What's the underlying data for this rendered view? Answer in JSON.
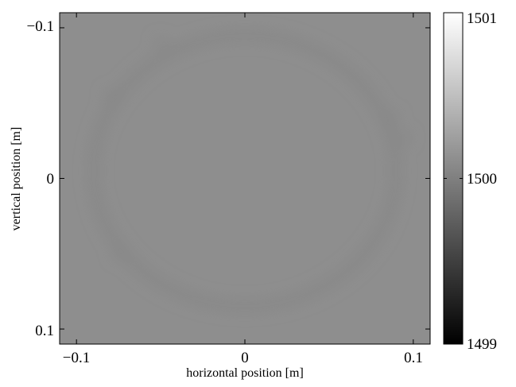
{
  "chart_data": {
    "type": "heatmap",
    "title": "",
    "xlabel": "horizontal position [m]",
    "ylabel": "vertical position [m]",
    "xlim": [
      -0.11,
      0.11
    ],
    "ylim": [
      -0.11,
      0.11
    ],
    "y_direction": "reversed (negative at top)",
    "xticks": [
      {
        "value": -0.1,
        "label": "−0.1"
      },
      {
        "value": 0,
        "label": "0"
      },
      {
        "value": 0.1,
        "label": "0.1"
      }
    ],
    "yticks": [
      {
        "value": -0.1,
        "label": "−0.1"
      },
      {
        "value": 0,
        "label": "0"
      },
      {
        "value": 0.1,
        "label": "0.1"
      }
    ],
    "grid": false,
    "colormap": "gray",
    "colorbar": {
      "range": [
        1499,
        1501
      ],
      "ticks": [
        {
          "value": 1499,
          "label": "1499"
        },
        {
          "value": 1500,
          "label": "1500"
        },
        {
          "value": 1501,
          "label": "1501"
        }
      ]
    },
    "field": {
      "background_value": 1500.0,
      "ring": {
        "center_x": 0.0,
        "center_y": -0.005,
        "radius": 0.09,
        "value": 1499.85
      },
      "spots": [
        {
          "x": -0.08,
          "y": -0.055,
          "value": 1499.85
        },
        {
          "x": 0.088,
          "y": -0.04,
          "value": 1499.85
        },
        {
          "x": 0.095,
          "y": -0.027,
          "value": 1499.8
        },
        {
          "x": -0.05,
          "y": -0.09,
          "value": 1499.88
        },
        {
          "x": -0.075,
          "y": 0.05,
          "value": 1499.88
        }
      ]
    },
    "colors": {
      "background": "#8e8e8e",
      "feature": "#868686",
      "frame": "#000000"
    }
  }
}
